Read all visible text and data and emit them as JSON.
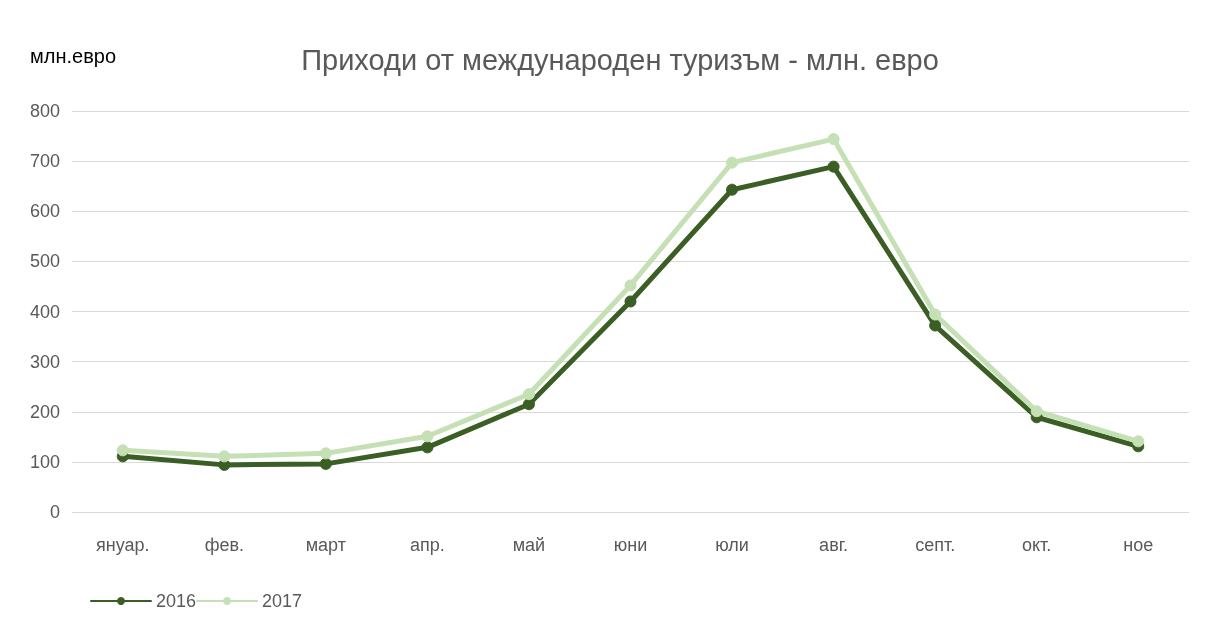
{
  "chart_data": {
    "type": "line",
    "title": "Приходи от международен туризъм - млн. евро",
    "ylabel": "млн.евро",
    "categories": [
      "януар.",
      "фев.",
      "март",
      "апр.",
      "май",
      "юни",
      "юли",
      "авг.",
      "септ.",
      "окт.",
      "ное"
    ],
    "series": [
      {
        "name": "2016",
        "color": "#3b5e25",
        "values": [
          111,
          94,
          96,
          129,
          215,
          420,
          643,
          689,
          372,
          189,
          131
        ]
      },
      {
        "name": "2017",
        "color": "#c5e0b4",
        "values": [
          123,
          111,
          117,
          151,
          235,
          452,
          697,
          744,
          394,
          201,
          141
        ]
      }
    ],
    "ylim": [
      0,
      800
    ],
    "yticks": [
      0,
      100,
      200,
      300,
      400,
      500,
      600,
      700,
      800
    ],
    "grid": "y",
    "legend": "bottom left",
    "marker": "circle",
    "line_style": "solid"
  }
}
